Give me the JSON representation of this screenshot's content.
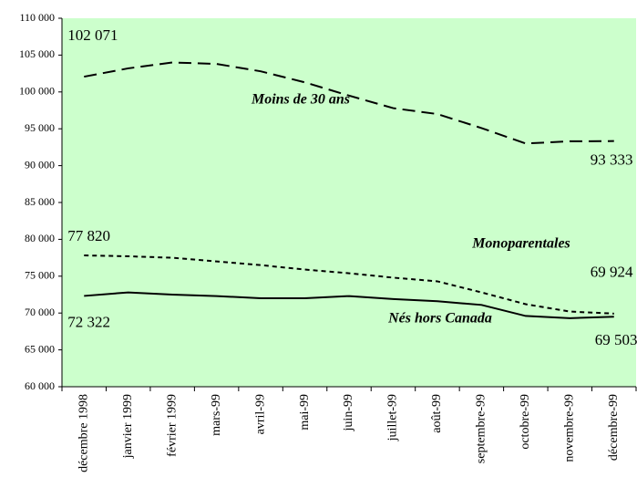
{
  "chart_data": {
    "type": "line",
    "categories": [
      "décembre 1998",
      "janvier 1999",
      "février 1999",
      "mars-99",
      "avril-99",
      "mai-99",
      "juin-99",
      "juillet-99",
      "août-99",
      "septembre-99",
      "octobre-99",
      "novembre-99",
      "décembre-99"
    ],
    "series": [
      {
        "name": "Moins de 30 ans",
        "color": "#000000",
        "dash": "long",
        "values": [
          102071,
          103200,
          104000,
          103800,
          102800,
          101300,
          99500,
          97800,
          97000,
          95100,
          93000,
          93300,
          93333
        ],
        "value_labels": [
          "102 071",
          null,
          null,
          null,
          null,
          null,
          null,
          null,
          null,
          null,
          null,
          null,
          "93 333"
        ]
      },
      {
        "name": "Monoparentales",
        "color": "#000000",
        "dash": "short",
        "values": [
          77820,
          77700,
          77500,
          77000,
          76500,
          75900,
          75400,
          74800,
          74300,
          72800,
          71200,
          70200,
          69924
        ],
        "value_labels": [
          "77 820",
          null,
          null,
          null,
          null,
          null,
          null,
          null,
          null,
          null,
          null,
          null,
          "69 924"
        ]
      },
      {
        "name": "Nés hors Canada",
        "color": "#000000",
        "dash": "solid",
        "values": [
          72322,
          72800,
          72500,
          72300,
          72000,
          72000,
          72300,
          71900,
          71600,
          71100,
          69600,
          69300,
          69503
        ],
        "value_labels": [
          "72 322",
          null,
          null,
          null,
          null,
          null,
          null,
          null,
          null,
          null,
          null,
          null,
          "69 503"
        ]
      }
    ],
    "ylim": [
      60000,
      110000
    ],
    "yticks": [
      {
        "value": 60000,
        "label": "60 000"
      },
      {
        "value": 65000,
        "label": "65 000"
      },
      {
        "value": 70000,
        "label": "70 000"
      },
      {
        "value": 75000,
        "label": "75 000"
      },
      {
        "value": 80000,
        "label": "80 000"
      },
      {
        "value": 85000,
        "label": "85 000"
      },
      {
        "value": 90000,
        "label": "90 000"
      },
      {
        "value": 95000,
        "label": "95 000"
      },
      {
        "value": 100000,
        "label": "100 000"
      },
      {
        "value": 105000,
        "label": "105 000"
      },
      {
        "value": 110000,
        "label": "110 000"
      }
    ],
    "background": "#ccffcc",
    "grid": false
  }
}
